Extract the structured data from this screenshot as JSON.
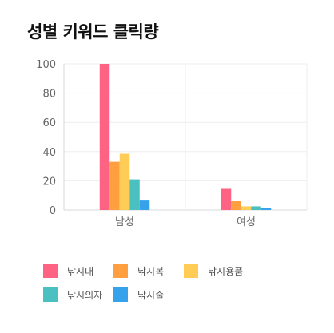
{
  "chart_data": {
    "type": "bar",
    "title": "성별 키워드 클릭량",
    "categories": [
      "남성",
      "여성"
    ],
    "series": [
      {
        "name": "낚시대",
        "color": "#ff6384",
        "values": [
          100,
          14.5
        ]
      },
      {
        "name": "낚시복",
        "color": "#ff9f40",
        "values": [
          33,
          6
        ]
      },
      {
        "name": "낚시용품",
        "color": "#ffcd56",
        "values": [
          38.5,
          2.5
        ]
      },
      {
        "name": "낚시의자",
        "color": "#4bc0c0",
        "values": [
          21,
          2.5
        ]
      },
      {
        "name": "낚시줄",
        "color": "#36a2eb",
        "values": [
          6.5,
          1.5
        ]
      }
    ],
    "ylim": [
      0,
      100
    ],
    "yticks": [
      0,
      20,
      40,
      60,
      80,
      100
    ],
    "grid": true,
    "legend": "bottom"
  }
}
